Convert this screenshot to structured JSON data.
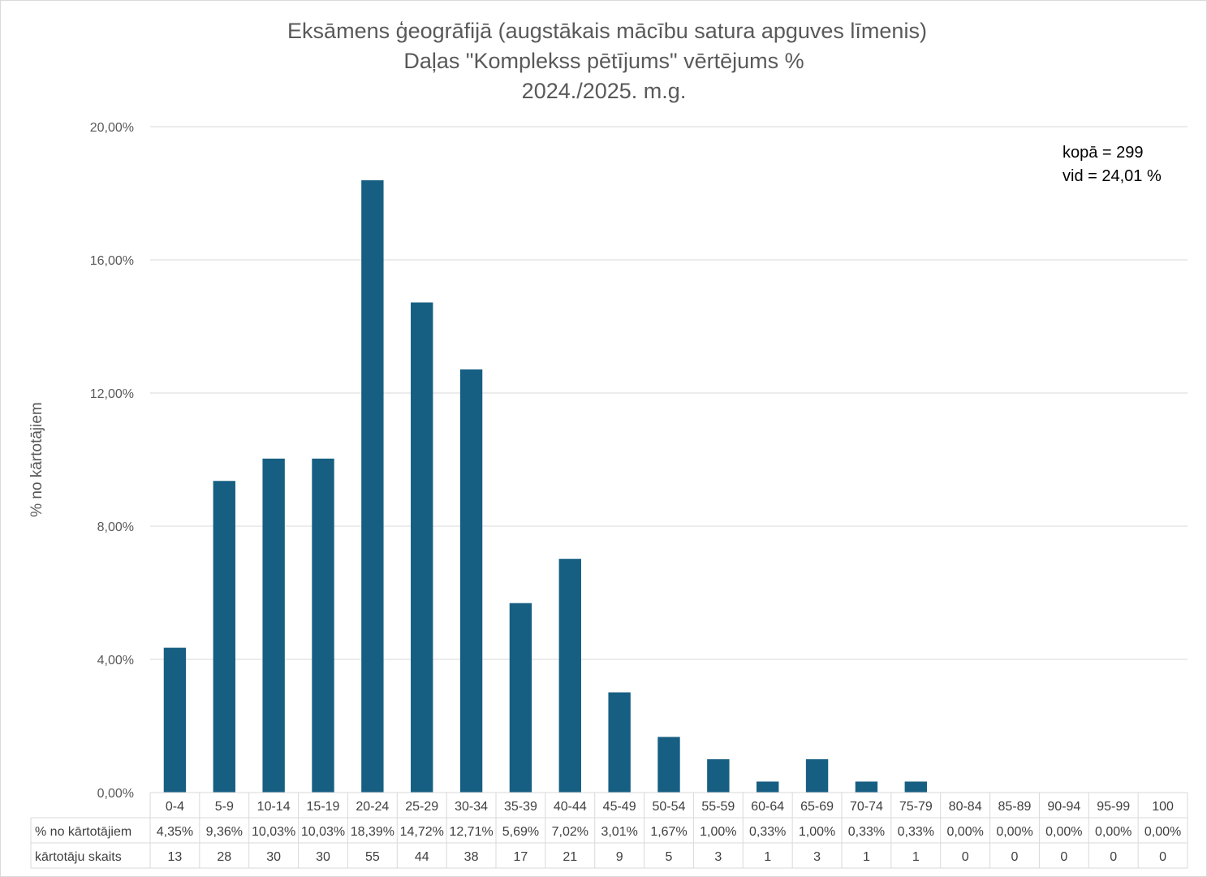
{
  "chart_data": {
    "type": "bar",
    "title_lines": [
      "Eksāmens ģeogrāfijā (augstākais mācību satura apguves līmenis)",
      "Daļas \"Komplekss pētījums\" vērtējums %",
      "2024./2025. m.g."
    ],
    "ylabel": "% no kārtotājiem",
    "ylim": [
      0,
      20
    ],
    "yticks": [
      0,
      4,
      8,
      12,
      16,
      20
    ],
    "ytick_labels": [
      "0,00%",
      "4,00%",
      "8,00%",
      "12,00%",
      "16,00%",
      "20,00%"
    ],
    "grid": true,
    "bar_color": "#175f82",
    "categories": [
      "0-4",
      "5-9",
      "10-14",
      "15-19",
      "20-24",
      "25-29",
      "30-34",
      "35-39",
      "40-44",
      "45-49",
      "50-54",
      "55-59",
      "60-64",
      "65-69",
      "70-74",
      "75-79",
      "80-84",
      "85-89",
      "90-94",
      "95-99",
      "100"
    ],
    "values": [
      4.35,
      9.36,
      10.03,
      10.03,
      18.39,
      14.72,
      12.71,
      5.69,
      7.02,
      3.01,
      1.67,
      1.0,
      0.33,
      1.0,
      0.33,
      0.33,
      0.0,
      0.0,
      0.0,
      0.0,
      0.0
    ],
    "table": {
      "row1_label": "% no kārtotājiem",
      "row1_values": [
        "4,35%",
        "9,36%",
        "10,03%",
        "10,03%",
        "18,39%",
        "14,72%",
        "12,71%",
        "5,69%",
        "7,02%",
        "3,01%",
        "1,67%",
        "1,00%",
        "0,33%",
        "1,00%",
        "0,33%",
        "0,33%",
        "0,00%",
        "0,00%",
        "0,00%",
        "0,00%",
        "0,00%"
      ],
      "row2_label": "kārtotāju skaits",
      "row2_values": [
        "13",
        "28",
        "30",
        "30",
        "55",
        "44",
        "38",
        "17",
        "21",
        "9",
        "5",
        "3",
        "1",
        "3",
        "1",
        "1",
        "0",
        "0",
        "0",
        "0",
        "0"
      ]
    },
    "annotations": [
      "kopā = 299",
      "vid = 24,01 %"
    ]
  }
}
